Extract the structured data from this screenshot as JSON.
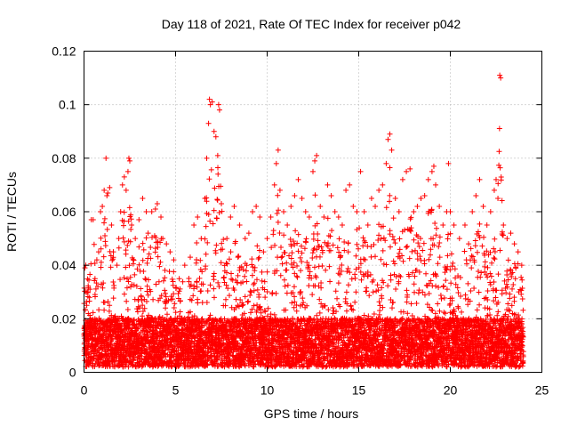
{
  "chart_data": {
    "type": "scatter",
    "title": "Day 118 of 2021, Rate Of TEC Index for receiver p042",
    "xlabel": "GPS time / hours",
    "ylabel": "ROTI / TECUs",
    "xlim": [
      0,
      25
    ],
    "ylim": [
      0,
      0.12
    ],
    "xticks": [
      0,
      5,
      10,
      15,
      20,
      25
    ],
    "xtick_labels": [
      "0",
      "5",
      "10",
      "15",
      "20",
      "25"
    ],
    "yticks": [
      0,
      0.02,
      0.04,
      0.06,
      0.08,
      0.1,
      0.12
    ],
    "ytick_labels": [
      "0",
      "0.02",
      "0.04",
      "0.06",
      "0.08",
      "0.1",
      "0.12"
    ],
    "grid": true,
    "marker": "+",
    "marker_color": "#ff0000",
    "series": [
      {
        "name": "ROTI",
        "points": [
          [
            0.05,
            0.039
          ],
          [
            0.1,
            0.04
          ],
          [
            0.15,
            0.025
          ],
          [
            0.2,
            0.03
          ],
          [
            0.3,
            0.028
          ],
          [
            0.35,
            0.02
          ],
          [
            0.4,
            0.057
          ],
          [
            0.5,
            0.057
          ],
          [
            0.6,
            0.035
          ],
          [
            0.7,
            0.042
          ],
          [
            0.8,
            0.045
          ],
          [
            0.9,
            0.06
          ],
          [
            1.0,
            0.062
          ],
          [
            1.1,
            0.068
          ],
          [
            1.2,
            0.08
          ],
          [
            1.25,
            0.066
          ],
          [
            1.3,
            0.067
          ],
          [
            1.4,
            0.069
          ],
          [
            1.5,
            0.055
          ],
          [
            1.6,
            0.045
          ],
          [
            1.8,
            0.04
          ],
          [
            1.9,
            0.05
          ],
          [
            2.0,
            0.06
          ],
          [
            2.1,
            0.07
          ],
          [
            2.2,
            0.073
          ],
          [
            2.3,
            0.068
          ],
          [
            2.4,
            0.075
          ],
          [
            2.45,
            0.08
          ],
          [
            2.5,
            0.079
          ],
          [
            2.6,
            0.055
          ],
          [
            2.8,
            0.05
          ],
          [
            3.0,
            0.057
          ],
          [
            3.2,
            0.065
          ],
          [
            3.4,
            0.06
          ],
          [
            3.5,
            0.052
          ],
          [
            3.7,
            0.06
          ],
          [
            3.9,
            0.061
          ],
          [
            4.0,
            0.063
          ],
          [
            4.2,
            0.058
          ],
          [
            4.3,
            0.05
          ],
          [
            4.5,
            0.048
          ],
          [
            4.7,
            0.045
          ],
          [
            4.9,
            0.042
          ],
          [
            5.2,
            0.035
          ],
          [
            5.5,
            0.04
          ],
          [
            5.8,
            0.043
          ],
          [
            6.0,
            0.055
          ],
          [
            6.2,
            0.058
          ],
          [
            6.4,
            0.05
          ],
          [
            6.6,
            0.065
          ],
          [
            6.7,
            0.08
          ],
          [
            6.8,
            0.093
          ],
          [
            6.85,
            0.102
          ],
          [
            6.9,
            0.1
          ],
          [
            7.0,
            0.101
          ],
          [
            7.1,
            0.09
          ],
          [
            7.2,
            0.088
          ],
          [
            7.3,
            0.081
          ],
          [
            7.35,
            0.1
          ],
          [
            7.4,
            0.098
          ],
          [
            7.5,
            0.063
          ],
          [
            7.8,
            0.05
          ],
          [
            8.0,
            0.058
          ],
          [
            8.2,
            0.062
          ],
          [
            8.5,
            0.055
          ],
          [
            8.8,
            0.05
          ],
          [
            9.0,
            0.052
          ],
          [
            9.2,
            0.06
          ],
          [
            9.4,
            0.062
          ],
          [
            9.6,
            0.058
          ],
          [
            9.8,
            0.045
          ],
          [
            10.0,
            0.05
          ],
          [
            10.2,
            0.058
          ],
          [
            10.4,
            0.07
          ],
          [
            10.5,
            0.078
          ],
          [
            10.6,
            0.083
          ],
          [
            10.7,
            0.068
          ],
          [
            10.9,
            0.06
          ],
          [
            11.1,
            0.055
          ],
          [
            11.3,
            0.062
          ],
          [
            11.5,
            0.066
          ],
          [
            11.7,
            0.072
          ],
          [
            11.9,
            0.065
          ],
          [
            12.1,
            0.06
          ],
          [
            12.3,
            0.058
          ],
          [
            12.5,
            0.075
          ],
          [
            12.6,
            0.079
          ],
          [
            12.7,
            0.081
          ],
          [
            12.9,
            0.062
          ],
          [
            13.1,
            0.058
          ],
          [
            13.3,
            0.07
          ],
          [
            13.5,
            0.066
          ],
          [
            13.7,
            0.06
          ],
          [
            13.9,
            0.058
          ],
          [
            14.1,
            0.055
          ],
          [
            14.3,
            0.068
          ],
          [
            14.5,
            0.07
          ],
          [
            14.7,
            0.062
          ],
          [
            14.9,
            0.06
          ],
          [
            15.1,
            0.075
          ],
          [
            15.3,
            0.06
          ],
          [
            15.5,
            0.055
          ],
          [
            15.7,
            0.065
          ],
          [
            15.9,
            0.062
          ],
          [
            16.1,
            0.068
          ],
          [
            16.3,
            0.07
          ],
          [
            16.5,
            0.078
          ],
          [
            16.6,
            0.087
          ],
          [
            16.7,
            0.089
          ],
          [
            16.8,
            0.083
          ],
          [
            17.0,
            0.065
          ],
          [
            17.2,
            0.06
          ],
          [
            17.4,
            0.072
          ],
          [
            17.6,
            0.075
          ],
          [
            17.8,
            0.076
          ],
          [
            18.0,
            0.06
          ],
          [
            18.2,
            0.062
          ],
          [
            18.4,
            0.065
          ],
          [
            18.6,
            0.066
          ],
          [
            18.8,
            0.072
          ],
          [
            19.0,
            0.075
          ],
          [
            19.1,
            0.077
          ],
          [
            19.2,
            0.07
          ],
          [
            19.4,
            0.062
          ],
          [
            19.6,
            0.055
          ],
          [
            19.8,
            0.06
          ],
          [
            19.9,
            0.078
          ],
          [
            20.0,
            0.06
          ],
          [
            20.2,
            0.055
          ],
          [
            20.5,
            0.05
          ],
          [
            20.8,
            0.055
          ],
          [
            21.0,
            0.048
          ],
          [
            21.2,
            0.06
          ],
          [
            21.4,
            0.066
          ],
          [
            21.6,
            0.072
          ],
          [
            21.8,
            0.062
          ],
          [
            22.0,
            0.055
          ],
          [
            22.2,
            0.06
          ],
          [
            22.4,
            0.068
          ],
          [
            22.5,
            0.072
          ],
          [
            22.6,
            0.065
          ],
          [
            22.7,
            0.111
          ],
          [
            22.75,
            0.11
          ],
          [
            22.9,
            0.055
          ],
          [
            23.1,
            0.05
          ],
          [
            23.3,
            0.052
          ],
          [
            23.5,
            0.048
          ],
          [
            23.7,
            0.045
          ],
          [
            23.9,
            0.04
          ]
        ],
        "baseline_band": [
          0.002,
          0.028
        ],
        "sample_interval_hours": 0.01
      }
    ]
  }
}
